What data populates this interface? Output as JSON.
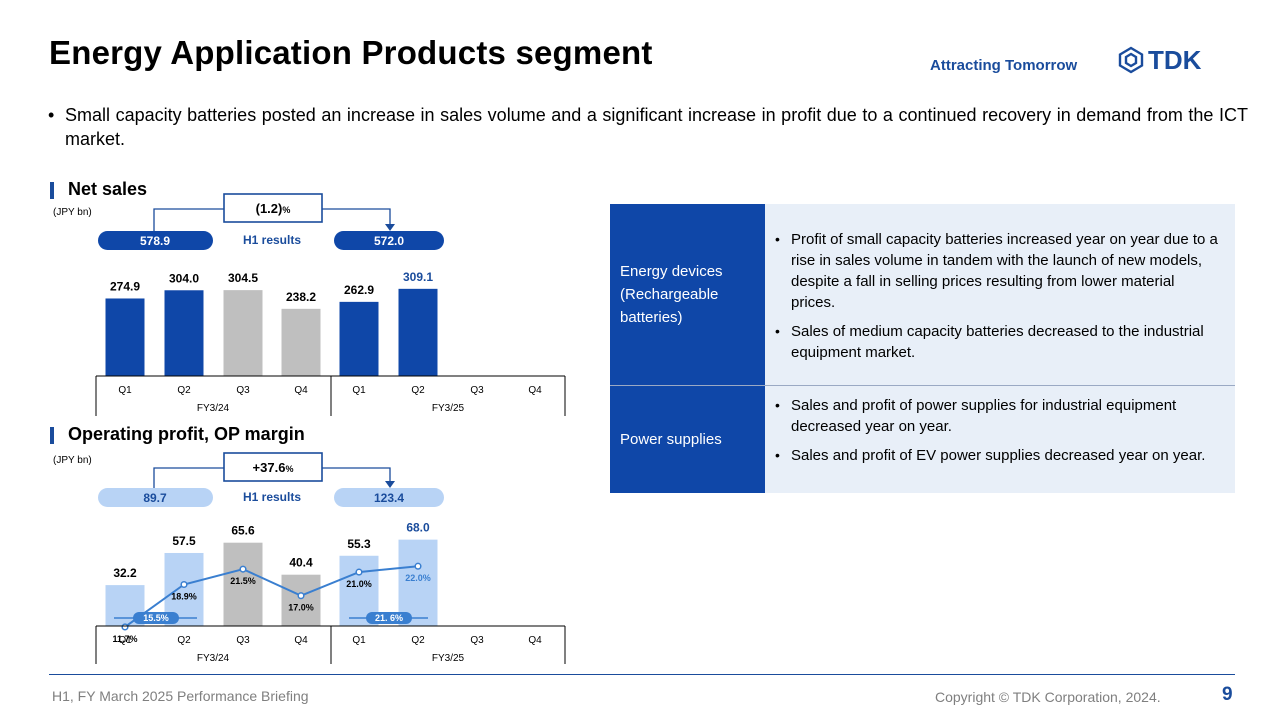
{
  "header": {
    "title": "Energy Application Products segment",
    "tagline": "Attracting Tomorrow",
    "logo_text": "TDK"
  },
  "summary": {
    "bullet": "•",
    "text": "Small capacity batteries posted an increase in sales volume and a significant increase in profit due to a continued recovery in demand from the ICT market."
  },
  "net_sales_section": {
    "title": "Net sales",
    "unit": "(JPY bn)"
  },
  "op_section": {
    "title": "Operating profit, OP margin",
    "unit": "(JPY bn)"
  },
  "table": {
    "rows": [
      {
        "label": "Energy devices (Rechargeable batteries)",
        "bullets": [
          "Profit of small capacity batteries increased year on year due to a rise in sales volume in tandem with the launch of new models, despite a fall in selling prices resulting from lower material prices.",
          "Sales of medium capacity batteries decreased to the industrial equipment market."
        ]
      },
      {
        "label": "Power supplies",
        "bullets": [
          "Sales and profit of power supplies for industrial equipment decreased year on year.",
          "Sales and profit of EV power supplies decreased year on year."
        ]
      }
    ]
  },
  "footer": {
    "left": "H1, FY March 2025 Performance Briefing",
    "right": "Copyright © TDK Corporation, 2024.",
    "page": "9"
  },
  "colors": {
    "dark_blue": "#0f47a8",
    "gray_bar": "#bfbfbf",
    "light_blue": "#b8d3f5",
    "line_blue": "#3a7fd0",
    "accent": "#1a4c9c"
  },
  "chart_data": [
    {
      "type": "bar",
      "title": "Net sales",
      "unit": "(JPY bn)",
      "categories": [
        "Q1",
        "Q2",
        "Q3",
        "Q4",
        "Q1",
        "Q2",
        "Q3",
        "Q4"
      ],
      "groups": [
        "FY3/24",
        "FY3/25"
      ],
      "values": [
        274.9,
        304.0,
        304.5,
        238.2,
        262.9,
        309.1,
        null,
        null
      ],
      "labels": [
        "274.9",
        "304.0",
        "304.5",
        "238.2",
        "262.9",
        "309.1"
      ],
      "h1_label": "H1 results",
      "h1_prev": "578.9",
      "h1_curr": "572.0",
      "change": "(1.2)",
      "change_unit": "%"
    },
    {
      "type": "bar",
      "title": "Operating profit, OP margin",
      "unit": "(JPY bn)",
      "categories": [
        "Q1",
        "Q2",
        "Q3",
        "Q4",
        "Q1",
        "Q2",
        "Q3",
        "Q4"
      ],
      "groups": [
        "FY3/24",
        "FY3/25"
      ],
      "values": [
        32.2,
        57.5,
        65.6,
        40.4,
        55.3,
        68.0,
        null,
        null
      ],
      "labels": [
        "32.2",
        "57.5",
        "65.6",
        "40.4",
        "55.3",
        "68.0"
      ],
      "margin": [
        11.7,
        18.9,
        21.5,
        17.0,
        21.0,
        22.0
      ],
      "margin_labels": [
        "11.7%",
        "18.9%",
        "21.5%",
        "17.0%",
        "21.0%",
        "22.0%"
      ],
      "half_margin_labels": [
        "15.5%",
        "21. 6%"
      ],
      "h1_label": "H1 results",
      "h1_prev": "89.7",
      "h1_curr": "123.4",
      "change": "+37.6",
      "change_unit": "%"
    }
  ]
}
